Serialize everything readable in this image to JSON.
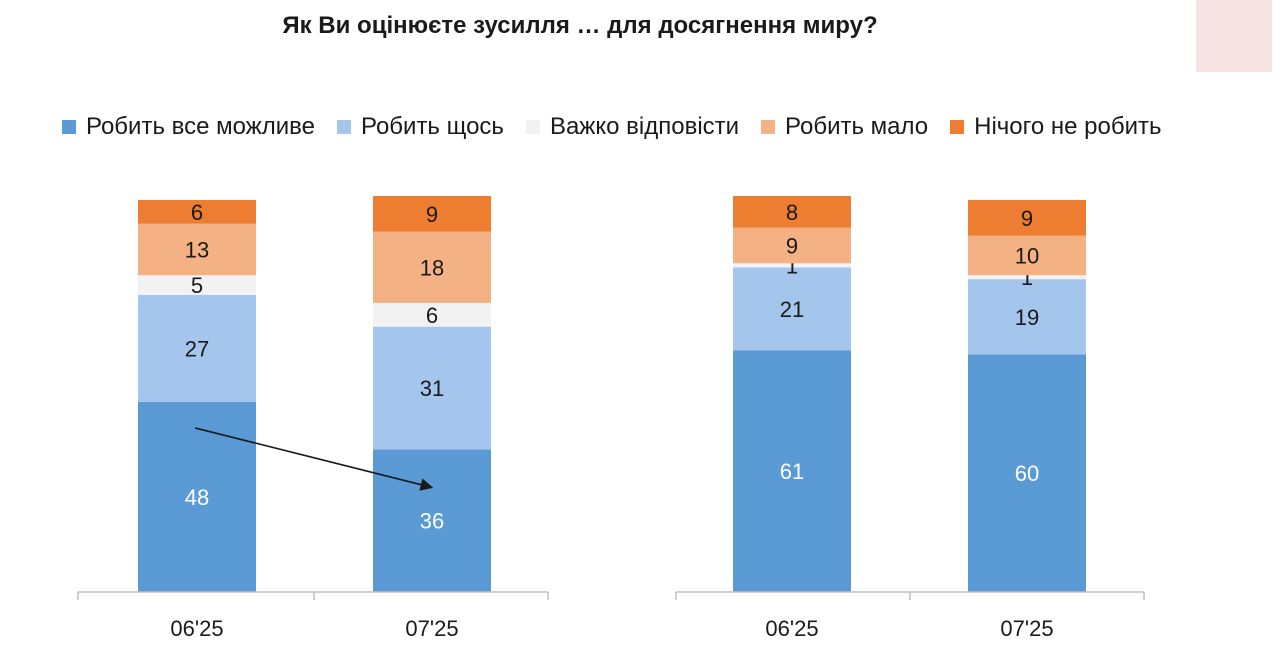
{
  "colors": {
    "Робить все можливе": "#5b9bd5",
    "Робить щось": "#a5c6ec",
    "Важко відповісти": "#f2f2f2",
    "Робить мало": "#f4b183",
    "Нічого не робить": "#ed7d31"
  },
  "chart_data": [
    {
      "type": "bar",
      "stacked": true,
      "title": "Як Ви оцінюєте зусилля … для досягнення миру?",
      "legend_position": "top",
      "legend": [
        "Робить все можливе",
        "Робить щось",
        "Важко відповісти",
        "Робить мало",
        "Нічого не робить"
      ],
      "categories": [
        "06'25",
        "07'25"
      ],
      "ylim": [
        0,
        100
      ],
      "series": [
        {
          "name": "Робить все можливе",
          "values": [
            48,
            36
          ]
        },
        {
          "name": "Робить щось",
          "values": [
            27,
            31
          ]
        },
        {
          "name": "Важко відповісти",
          "values": [
            5,
            6
          ]
        },
        {
          "name": "Робить мало",
          "values": [
            13,
            18
          ]
        },
        {
          "name": "Нічого не робить",
          "values": [
            6,
            9
          ]
        }
      ],
      "annotations": [
        "arrow from 06'25 to 07'25 in Робить все можливе"
      ]
    },
    {
      "type": "bar",
      "stacked": true,
      "categories": [
        "06'25",
        "07'25"
      ],
      "ylim": [
        0,
        100
      ],
      "series": [
        {
          "name": "Робить все можливе",
          "values": [
            61,
            60
          ]
        },
        {
          "name": "Робить щось",
          "values": [
            21,
            19
          ]
        },
        {
          "name": "Важко відповісти",
          "values": [
            1,
            1
          ]
        },
        {
          "name": "Робить мало",
          "values": [
            9,
            10
          ]
        },
        {
          "name": "Нічого не робить",
          "values": [
            8,
            9
          ]
        }
      ]
    }
  ]
}
